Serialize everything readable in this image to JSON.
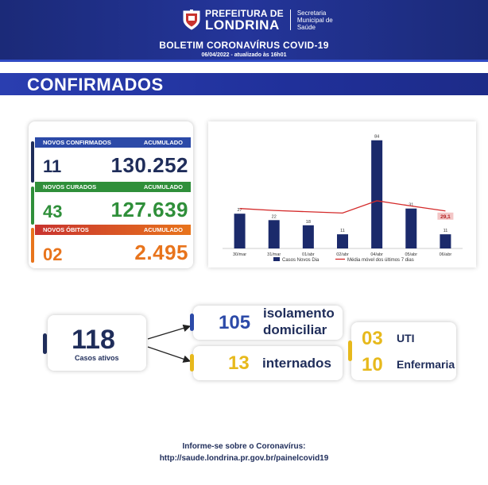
{
  "header": {
    "brand_line1": "PREFEITURA DE",
    "brand_line2": "LONDRINA",
    "brand_sub": "Secretaria Municipal de Saúde",
    "title": "BOLETIM CORONAVÍRUS COVID-19",
    "date": "06/04/2022 - atualizado às 16h01"
  },
  "section": {
    "title": "CONFIRMADOS"
  },
  "colors": {
    "navy": "#1f2d5a",
    "blue": "#2c4aa8",
    "green": "#2f8f3a",
    "orange": "#e8741c",
    "yellow": "#e7b91c",
    "red": "#d42a2a"
  },
  "stats": {
    "confirmed": {
      "label": "NOVOS CONFIRMADOS",
      "acc_label": "ACUMULADO",
      "new": "11",
      "total": "130.252"
    },
    "cured": {
      "label": "NOVOS CURADOS",
      "acc_label": "ACUMULADO",
      "new": "43",
      "total": "127.639"
    },
    "deaths": {
      "label": "NOVOS ÓBITOS",
      "acc_label": "ACUMULADO",
      "new": "02",
      "total": "2.495"
    }
  },
  "chart_data": {
    "type": "bar",
    "categories": [
      "30/mar",
      "31/mar",
      "01/abr",
      "02/abr",
      "04/abr",
      "05/abr",
      "06/abr"
    ],
    "series": [
      {
        "name": "Casos Novos Dia",
        "type": "bar",
        "color": "#1b2a6b",
        "values": [
          27,
          22,
          18,
          11,
          84,
          31,
          11
        ]
      },
      {
        "name": "Média móvel dos últimos 7 dias",
        "type": "line",
        "color": "#d42a2a",
        "values": [
          31,
          29.5,
          28.5,
          27.5,
          37,
          33,
          29.1
        ]
      }
    ],
    "bar_labels": [
      "27",
      "22",
      "18",
      "11",
      "84",
      "31",
      "11"
    ],
    "line_end_label": "29,1",
    "ylim": [
      0,
      90
    ],
    "legend_position": "bottom"
  },
  "cases": {
    "active": {
      "value": "118",
      "label": "Casos ativos"
    },
    "isolation": {
      "value": "105",
      "label_line1": "isolamento",
      "label_line2": "domiciliar"
    },
    "hospitalized": {
      "value": "13",
      "label": "internados"
    },
    "uti": {
      "value": "03",
      "label": "UTI"
    },
    "ward": {
      "value": "10",
      "label": "Enfermaria"
    }
  },
  "footer": {
    "line1": "Informe-se sobre o Coronavírus:",
    "line2": "http://saude.londrina.pr.gov.br/painelcovid19"
  }
}
